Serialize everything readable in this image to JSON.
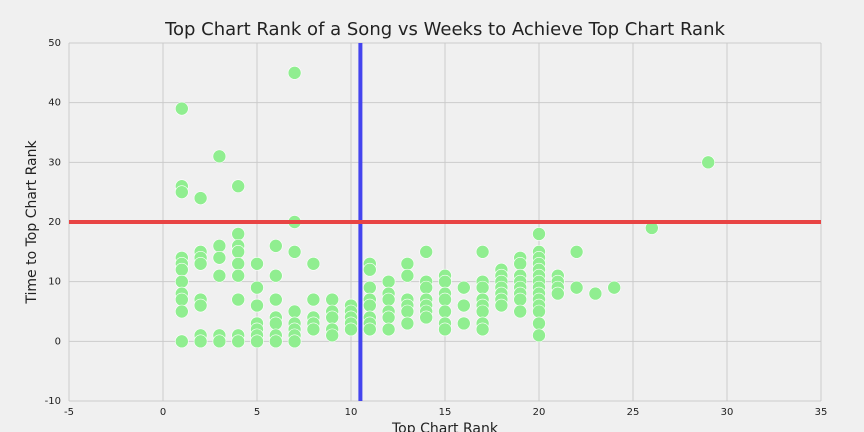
{
  "chart_data": {
    "type": "scatter",
    "title": "Top Chart Rank of a Song vs Weeks to Achieve Top Chart Rank",
    "xlabel": "Top Chart Rank",
    "ylabel": "Time to Top Chart Rank",
    "xlim": [
      -5,
      35
    ],
    "ylim": [
      -10,
      50
    ],
    "xticks": [
      -5,
      0,
      5,
      10,
      15,
      20,
      25,
      30,
      35
    ],
    "yticks": [
      -10,
      0,
      10,
      20,
      30,
      40,
      50
    ],
    "grid": true,
    "colors": {
      "points": "#90ee90",
      "vline": "#4444ee",
      "hline": "#e84444",
      "grid": "#cbcbcb",
      "background": "#f0f0f0"
    },
    "reference_lines": [
      {
        "orientation": "vertical",
        "value": 10.5,
        "color": "#4444ee"
      },
      {
        "orientation": "horizontal",
        "value": 20,
        "color": "#e84444"
      }
    ],
    "points": [
      [
        1,
        39
      ],
      [
        1,
        26
      ],
      [
        1,
        25
      ],
      [
        1,
        14
      ],
      [
        1,
        13
      ],
      [
        1,
        12
      ],
      [
        1,
        10
      ],
      [
        1,
        8
      ],
      [
        1,
        7
      ],
      [
        1,
        5
      ],
      [
        1,
        0
      ],
      [
        2,
        24
      ],
      [
        2,
        15
      ],
      [
        2,
        14
      ],
      [
        2,
        13
      ],
      [
        2,
        7
      ],
      [
        2,
        6
      ],
      [
        2,
        1
      ],
      [
        2,
        0
      ],
      [
        3,
        31
      ],
      [
        3,
        16
      ],
      [
        3,
        14
      ],
      [
        3,
        11
      ],
      [
        3,
        1
      ],
      [
        3,
        0
      ],
      [
        4,
        26
      ],
      [
        4,
        18
      ],
      [
        4,
        16
      ],
      [
        4,
        15
      ],
      [
        4,
        13
      ],
      [
        4,
        11
      ],
      [
        4,
        7
      ],
      [
        4,
        1
      ],
      [
        4,
        0
      ],
      [
        5,
        13
      ],
      [
        5,
        9
      ],
      [
        5,
        6
      ],
      [
        5,
        3
      ],
      [
        5,
        2
      ],
      [
        5,
        1
      ],
      [
        5,
        0
      ],
      [
        6,
        16
      ],
      [
        6,
        11
      ],
      [
        6,
        7
      ],
      [
        6,
        4
      ],
      [
        6,
        3
      ],
      [
        6,
        1
      ],
      [
        6,
        0
      ],
      [
        7,
        45
      ],
      [
        7,
        20
      ],
      [
        7,
        15
      ],
      [
        7,
        5
      ],
      [
        7,
        3
      ],
      [
        7,
        2
      ],
      [
        7,
        1
      ],
      [
        7,
        0
      ],
      [
        8,
        13
      ],
      [
        8,
        7
      ],
      [
        8,
        4
      ],
      [
        8,
        3
      ],
      [
        8,
        2
      ],
      [
        9,
        7
      ],
      [
        9,
        5
      ],
      [
        9,
        4
      ],
      [
        9,
        2
      ],
      [
        9,
        1
      ],
      [
        10,
        6
      ],
      [
        10,
        5
      ],
      [
        10,
        4
      ],
      [
        10,
        3
      ],
      [
        10,
        2
      ],
      [
        11,
        13
      ],
      [
        11,
        12
      ],
      [
        11,
        9
      ],
      [
        11,
        7
      ],
      [
        11,
        6
      ],
      [
        11,
        4
      ],
      [
        11,
        3
      ],
      [
        11,
        2
      ],
      [
        12,
        10
      ],
      [
        12,
        8
      ],
      [
        12,
        7
      ],
      [
        12,
        5
      ],
      [
        12,
        4
      ],
      [
        12,
        2
      ],
      [
        13,
        13
      ],
      [
        13,
        11
      ],
      [
        13,
        7
      ],
      [
        13,
        6
      ],
      [
        13,
        5
      ],
      [
        13,
        3
      ],
      [
        14,
        15
      ],
      [
        14,
        10
      ],
      [
        14,
        9
      ],
      [
        14,
        7
      ],
      [
        14,
        6
      ],
      [
        14,
        5
      ],
      [
        14,
        4
      ],
      [
        15,
        11
      ],
      [
        15,
        10
      ],
      [
        15,
        8
      ],
      [
        15,
        7
      ],
      [
        15,
        5
      ],
      [
        15,
        3
      ],
      [
        15,
        2
      ],
      [
        16,
        9
      ],
      [
        16,
        6
      ],
      [
        16,
        3
      ],
      [
        17,
        15
      ],
      [
        17,
        10
      ],
      [
        17,
        9
      ],
      [
        17,
        7
      ],
      [
        17,
        6
      ],
      [
        17,
        5
      ],
      [
        17,
        3
      ],
      [
        17,
        2
      ],
      [
        18,
        12
      ],
      [
        18,
        11
      ],
      [
        18,
        10
      ],
      [
        18,
        9
      ],
      [
        18,
        8
      ],
      [
        18,
        7
      ],
      [
        18,
        6
      ],
      [
        19,
        14
      ],
      [
        19,
        13
      ],
      [
        19,
        11
      ],
      [
        19,
        10
      ],
      [
        19,
        9
      ],
      [
        19,
        8
      ],
      [
        19,
        7
      ],
      [
        19,
        5
      ],
      [
        20,
        18
      ],
      [
        20,
        15
      ],
      [
        20,
        14
      ],
      [
        20,
        13
      ],
      [
        20,
        12
      ],
      [
        20,
        11
      ],
      [
        20,
        10
      ],
      [
        20,
        9
      ],
      [
        20,
        8
      ],
      [
        20,
        7
      ],
      [
        20,
        6
      ],
      [
        20,
        5
      ],
      [
        20,
        3
      ],
      [
        20,
        1
      ],
      [
        21,
        11
      ],
      [
        21,
        10
      ],
      [
        21,
        9
      ],
      [
        21,
        8
      ],
      [
        22,
        15
      ],
      [
        22,
        9
      ],
      [
        23,
        8
      ],
      [
        24,
        9
      ],
      [
        26,
        19
      ],
      [
        29,
        30
      ]
    ]
  }
}
